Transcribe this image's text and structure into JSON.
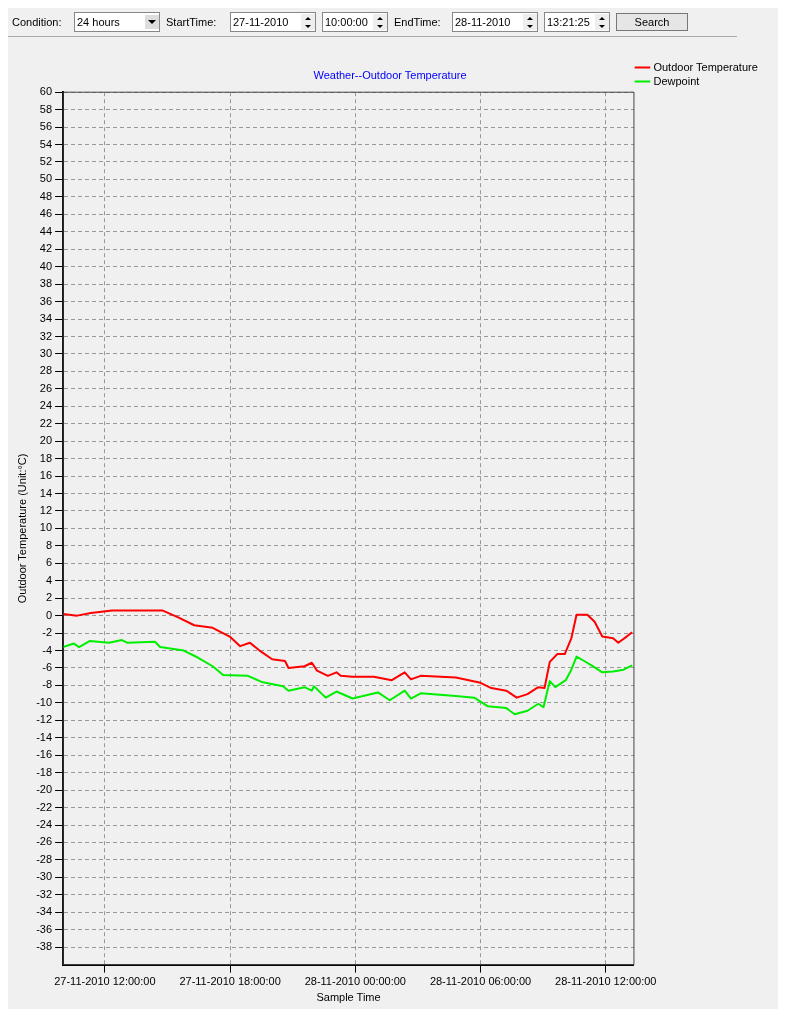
{
  "chart_data": {
    "type": "line",
    "title": "Weather--Outdoor Temperature",
    "xlabel": "Sample Time",
    "ylabel": "Outdoor Temperature (Unit:°C)",
    "annotations": [
      "Condition:",
      "24 hours",
      "StartTime:",
      "27-11-2010",
      "10:00:00",
      "EndTime:",
      "28-11-2010",
      "13:21:25",
      "Search"
    ],
    "series": [
      {
        "name": "Outdoor Temperature",
        "color": "#ff0000",
        "x": [
          "2010-11-27T10:00",
          "2010-11-27T10:40",
          "2010-11-27T11:20",
          "2010-11-27T12:21",
          "2010-11-27T14:45",
          "2010-11-27T15:31",
          "2010-11-27T16:17",
          "2010-11-27T17:10",
          "2010-11-27T17:59",
          "2010-11-27T18:29",
          "2010-11-27T18:57",
          "2010-11-27T19:28",
          "2010-11-27T20:01",
          "2010-11-27T20:38",
          "2010-11-27T20:48",
          "2010-11-27T21:34",
          "2010-11-27T21:55",
          "2010-11-27T22:10",
          "2010-11-27T22:41",
          "2010-11-27T23:06",
          "2010-11-27T23:18",
          "2010-11-27T23:52",
          "2010-11-28T00:53",
          "2010-11-28T01:45",
          "2010-11-28T02:22",
          "2010-11-28T02:40",
          "2010-11-28T03:08",
          "2010-11-28T04:49",
          "2010-11-28T06:00",
          "2010-11-28T06:31",
          "2010-11-28T07:14",
          "2010-11-28T07:44",
          "2010-11-28T08:15",
          "2010-11-28T08:46",
          "2010-11-28T09:04",
          "2010-11-28T09:19",
          "2010-11-28T09:41",
          "2010-11-28T10:02",
          "2010-11-28T10:21",
          "2010-11-28T10:36",
          "2010-11-28T11:07",
          "2010-11-28T11:28",
          "2010-11-28T11:50",
          "2010-11-28T12:21",
          "2010-11-28T12:36",
          "2010-11-28T13:00",
          "2010-11-28T13:16"
        ],
        "values": [
          0.2,
          0,
          0.3,
          0.6,
          0.6,
          -0.2,
          -1.1,
          -1.4,
          -2.4,
          -3.5,
          -3.1,
          -4.1,
          -5.0,
          -5.2,
          -6.0,
          -5.8,
          -5.4,
          -6.3,
          -6.9,
          -6.5,
          -6.9,
          -7.0,
          -7.0,
          -7.4,
          -6.5,
          -7.3,
          -6.9,
          -7.1,
          -7.7,
          -8.3,
          -8.6,
          -9.4,
          -9.0,
          -8.2,
          -8.3,
          -5.3,
          -4.4,
          -4.4,
          -2.6,
          0.1,
          0.1,
          -0.7,
          -2.4,
          -2.6,
          -3.1,
          -2.4,
          -1.9
        ]
      },
      {
        "name": "Dewpoint",
        "color": "#00ee00",
        "x": [
          "2010-11-27T10:00",
          "2010-11-27T10:31",
          "2010-11-27T10:46",
          "2010-11-27T11:17",
          "2010-11-27T12:12",
          "2010-11-27T12:49",
          "2010-11-27T13:04",
          "2010-11-27T14:24",
          "2010-11-27T14:39",
          "2010-11-27T15:47",
          "2010-11-27T16:27",
          "2010-11-27T17:10",
          "2010-11-27T17:40",
          "2010-11-27T18:51",
          "2010-11-27T19:31",
          "2010-11-27T20:32",
          "2010-11-27T20:48",
          "2010-11-27T21:34",
          "2010-11-27T21:55",
          "2010-11-27T22:01",
          "2010-11-27T22:35",
          "2010-11-27T23:06",
          "2010-11-27T23:52",
          "2010-11-28T01:05",
          "2010-11-28T01:39",
          "2010-11-28T02:22",
          "2010-11-28T02:40",
          "2010-11-28T03:08",
          "2010-11-28T04:49",
          "2010-11-28T05:42",
          "2010-11-28T06:21",
          "2010-11-28T07:14",
          "2010-11-28T07:38",
          "2010-11-28T08:15",
          "2010-11-28T08:46",
          "2010-11-28T09:01",
          "2010-11-28T09:19",
          "2010-11-28T09:35",
          "2010-11-28T10:05",
          "2010-11-28T10:21",
          "2010-11-28T10:36",
          "2010-11-28T10:58",
          "2010-11-28T11:19",
          "2010-11-28T11:50",
          "2010-11-28T12:21",
          "2010-11-28T12:51",
          "2010-11-28T13:16"
        ],
        "values": [
          -3.6,
          -3.2,
          -3.6,
          -2.9,
          -3.1,
          -2.8,
          -3.1,
          -3.0,
          -3.6,
          -4.0,
          -4.8,
          -5.8,
          -6.8,
          -6.9,
          -7.6,
          -8.1,
          -8.6,
          -8.2,
          -8.6,
          -8.1,
          -9.4,
          -8.7,
          -9.5,
          -8.8,
          -9.7,
          -8.6,
          -9.5,
          -8.9,
          -9.2,
          -9.4,
          -10.4,
          -10.6,
          -11.3,
          -10.9,
          -10.1,
          -10.5,
          -7.5,
          -8.2,
          -7.4,
          -6.2,
          -4.7,
          -5.2,
          -5.7,
          -6.5,
          -6.4,
          -6.2,
          -5.7
        ]
      }
    ],
    "xlim": [
      "2010-11-27T10:00",
      "2010-11-28T13:21"
    ],
    "xticks": [
      {
        "value": "2010-11-27T12:00",
        "label": "27-11-2010 12:00:00"
      },
      {
        "value": "2010-11-27T18:00",
        "label": "27-11-2010 18:00:00"
      },
      {
        "value": "2010-11-28T00:00",
        "label": "28-11-2010 00:00:00"
      },
      {
        "value": "2010-11-28T06:00",
        "label": "28-11-2010 06:00:00"
      },
      {
        "value": "2010-11-28T12:00",
        "label": "28-11-2010 12:00:00"
      }
    ],
    "ylim": [
      -40,
      60
    ],
    "yticks": [
      -38,
      -36,
      -34,
      -32,
      -30,
      -28,
      -26,
      -24,
      -22,
      -20,
      -18,
      -16,
      -14,
      -12,
      -10,
      -8,
      -6,
      -4,
      -2,
      0,
      2,
      4,
      6,
      8,
      10,
      12,
      14,
      16,
      18,
      20,
      22,
      24,
      26,
      28,
      30,
      32,
      34,
      36,
      38,
      40,
      42,
      44,
      46,
      48,
      50,
      52,
      54,
      56,
      58,
      60
    ],
    "grid": true,
    "legend": "top right",
    "marker": "none",
    "line_style": "solid"
  }
}
